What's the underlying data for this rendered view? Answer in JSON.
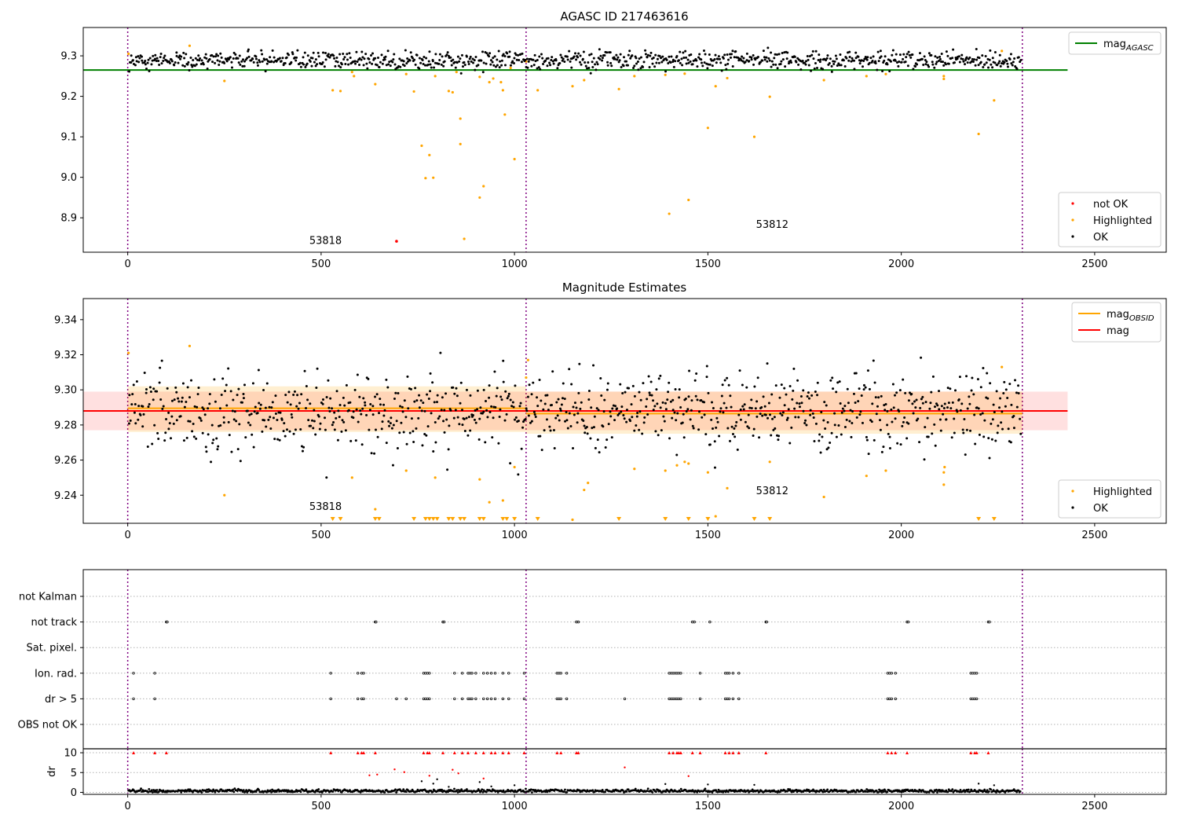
{
  "colors": {
    "ok": "#000000",
    "highlighted": "#ffa500",
    "not_ok": "#ff0000",
    "mag_agasc": "#008000",
    "mag_obsid": "#ffa500",
    "mag": "#ff0000",
    "obs_boundary": "#800080",
    "grid": "#b0b0b0"
  },
  "chart_data": [
    {
      "type": "scatter",
      "title": "AGASC ID 217463616",
      "xlim": [
        -115,
        2685
      ],
      "ylim": [
        8.815,
        9.37
      ],
      "xticks": [
        "0",
        "500",
        "1000",
        "1500",
        "2000",
        "2500"
      ],
      "yticks": [
        "8.9",
        "9.0",
        "9.1",
        "9.2",
        "9.3"
      ],
      "x_range_points": [
        0,
        2310
      ],
      "obs_boundaries": [
        0,
        1030,
        2313
      ],
      "obsid_labels": [
        {
          "text": "53818",
          "x": 510,
          "y": 8.82
        },
        {
          "text": "53812",
          "x": 1665,
          "y": 8.86
        }
      ],
      "mag_agasc_line": {
        "y": 9.265,
        "x": [
          -115,
          2430
        ]
      },
      "ok_band": {
        "mean": 9.288,
        "sigma": 0.0095
      },
      "highlighted": [
        [
          2,
          9.305
        ],
        [
          160,
          9.325
        ],
        [
          250,
          9.238
        ],
        [
          530,
          9.215
        ],
        [
          550,
          9.213
        ],
        [
          580,
          9.26
        ],
        [
          585,
          9.25
        ],
        [
          640,
          9.23
        ],
        [
          720,
          9.255
        ],
        [
          740,
          9.212
        ],
        [
          760,
          9.078
        ],
        [
          770,
          8.998
        ],
        [
          780,
          9.055
        ],
        [
          790,
          8.999
        ],
        [
          795,
          9.25
        ],
        [
          830,
          9.213
        ],
        [
          840,
          9.21
        ],
        [
          850,
          9.26
        ],
        [
          860,
          9.145
        ],
        [
          860,
          9.082
        ],
        [
          870,
          8.848
        ],
        [
          910,
          8.95
        ],
        [
          910,
          9.248
        ],
        [
          920,
          8.978
        ],
        [
          935,
          9.235
        ],
        [
          945,
          9.244
        ],
        [
          965,
          9.235
        ],
        [
          970,
          9.215
        ],
        [
          975,
          9.155
        ],
        [
          990,
          9.27
        ],
        [
          1000,
          9.045
        ],
        [
          1030,
          9.286
        ],
        [
          1060,
          9.215
        ],
        [
          1150,
          9.225
        ],
        [
          1180,
          9.24
        ],
        [
          1270,
          9.218
        ],
        [
          1310,
          9.25
        ],
        [
          1390,
          9.253
        ],
        [
          1400,
          8.91
        ],
        [
          1440,
          9.256
        ],
        [
          1450,
          8.944
        ],
        [
          1500,
          9.122
        ],
        [
          1520,
          9.225
        ],
        [
          1550,
          9.245
        ],
        [
          1620,
          9.1
        ],
        [
          1660,
          9.199
        ],
        [
          1800,
          9.24
        ],
        [
          1910,
          9.25
        ],
        [
          1960,
          9.255
        ],
        [
          2110,
          9.243
        ],
        [
          2110,
          9.25
        ],
        [
          2200,
          9.107
        ],
        [
          2240,
          9.19
        ],
        [
          2260,
          9.312
        ]
      ],
      "not_ok": [
        [
          695,
          8.842
        ]
      ],
      "ok_series": {
        "count": 1000,
        "x_range": [
          2,
          2310
        ],
        "center": 9.289,
        "spread": 0.011
      },
      "legends": [
        {
          "position": "top-right",
          "entries": [
            {
              "label": "mag",
              "sub": "AGASC",
              "kind": "line",
              "color": "#008000"
            }
          ]
        },
        {
          "position": "bottom-right",
          "entries": [
            {
              "label": "not OK",
              "kind": "dot",
              "color": "#ff0000"
            },
            {
              "label": "Highlighted",
              "kind": "dot",
              "color": "#ffa500"
            },
            {
              "label": "OK",
              "kind": "dot",
              "color": "#000000"
            }
          ]
        }
      ]
    },
    {
      "type": "scatter",
      "title": "Magnitude Estimates",
      "xlim": [
        -115,
        2685
      ],
      "ylim": [
        9.224,
        9.352
      ],
      "xticks": [
        "0",
        "500",
        "1000",
        "1500",
        "2000",
        "2500"
      ],
      "yticks": [
        "9.24",
        "9.26",
        "9.28",
        "9.30",
        "9.32",
        "9.34"
      ],
      "obs_boundaries": [
        0,
        1030,
        2313
      ],
      "obsid_labels": [
        {
          "text": "53818",
          "x": 510,
          "y": 9.228
        },
        {
          "text": "53812",
          "x": 1665,
          "y": 9.237
        }
      ],
      "mag_line": {
        "y": 9.288,
        "x": [
          -115,
          2430
        ],
        "band": [
          9.277,
          9.299
        ]
      },
      "mag_obsid_segments": [
        {
          "x": [
            0,
            1030
          ],
          "y": 9.2895,
          "band": [
            9.276,
            9.302
          ]
        },
        {
          "x": [
            1030,
            2313
          ],
          "y": 9.2865,
          "band": [
            9.275,
            9.299
          ]
        }
      ],
      "highlighted": [
        [
          2,
          9.321
        ],
        [
          160,
          9.325
        ],
        [
          250,
          9.24
        ],
        [
          580,
          9.25
        ],
        [
          640,
          9.232
        ],
        [
          720,
          9.254
        ],
        [
          795,
          9.25
        ],
        [
          910,
          9.249
        ],
        [
          935,
          9.236
        ],
        [
          970,
          9.237
        ],
        [
          1000,
          9.256
        ],
        [
          1030,
          9.307
        ],
        [
          1035,
          9.317
        ],
        [
          1150,
          9.226
        ],
        [
          1180,
          9.243
        ],
        [
          1190,
          9.247
        ],
        [
          1310,
          9.255
        ],
        [
          1390,
          9.254
        ],
        [
          1420,
          9.257
        ],
        [
          1440,
          9.259
        ],
        [
          1450,
          9.258
        ],
        [
          1500,
          9.253
        ],
        [
          1520,
          9.228
        ],
        [
          1550,
          9.244
        ],
        [
          1660,
          9.259
        ],
        [
          1800,
          9.239
        ],
        [
          1910,
          9.251
        ],
        [
          1960,
          9.254
        ],
        [
          2110,
          9.253
        ],
        [
          2110,
          9.246
        ],
        [
          2112,
          9.256
        ],
        [
          2260,
          9.313
        ]
      ],
      "clipped_below_x": [
        530,
        550,
        640,
        650,
        740,
        770,
        780,
        790,
        800,
        830,
        840,
        860,
        870,
        910,
        920,
        970,
        980,
        1000,
        1060,
        1270,
        1390,
        1450,
        1500,
        1620,
        1660,
        2200,
        2240
      ],
      "ok_series": {
        "count": 1000,
        "x_range": [
          2,
          2310
        ],
        "center": 9.288,
        "spread": 0.011
      },
      "legends": [
        {
          "position": "top-right",
          "entries": [
            {
              "label": "mag",
              "sub": "OBSID",
              "kind": "line",
              "color": "#ffa500"
            },
            {
              "label": "mag",
              "sub": "",
              "kind": "line",
              "color": "#ff0000"
            }
          ]
        },
        {
          "position": "bottom-right",
          "entries": [
            {
              "label": "Highlighted",
              "kind": "dot",
              "color": "#ffa500"
            },
            {
              "label": "OK",
              "kind": "dot",
              "color": "#000000"
            }
          ]
        }
      ]
    },
    {
      "type": "scatter",
      "title": "",
      "xlim": [
        -115,
        2685
      ],
      "flag_rows": [
        "not Kalman",
        "not track",
        "Sat. pixel.",
        "Ion. rad.",
        "dr > 5",
        "OBS not OK"
      ],
      "obs_boundaries": [
        0,
        1030,
        2313
      ],
      "flags": {
        "not track": [
          100,
          102,
          640,
          642,
          815,
          818,
          1160,
          1165,
          1460,
          1465,
          1505,
          1650,
          1652,
          2015,
          2018,
          2225,
          2228
        ],
        "Ion. rad.": [
          15,
          70,
          525,
          595,
          605,
          610,
          765,
          770,
          775,
          780,
          845,
          865,
          880,
          885,
          890,
          900,
          920,
          930,
          940,
          950,
          970,
          985,
          1025,
          1110,
          1115,
          1120,
          1135,
          1400,
          1405,
          1410,
          1415,
          1420,
          1425,
          1430,
          1480,
          1545,
          1550,
          1555,
          1565,
          1580,
          1965,
          1970,
          1975,
          1985,
          2180,
          2185,
          2190,
          2195
        ],
        "dr > 5": [
          15,
          70,
          525,
          595,
          605,
          610,
          695,
          720,
          765,
          770,
          775,
          780,
          845,
          865,
          880,
          885,
          890,
          900,
          920,
          930,
          940,
          950,
          970,
          985,
          1025,
          1110,
          1115,
          1120,
          1135,
          1285,
          1400,
          1405,
          1410,
          1415,
          1420,
          1425,
          1430,
          1480,
          1545,
          1550,
          1555,
          1565,
          1580,
          1965,
          1970,
          1975,
          1985,
          2180,
          2185,
          2190,
          2195
        ]
      },
      "dr": {
        "ylabel": "dr",
        "ylim": [
          -0.5,
          11
        ],
        "yticks": [
          "0",
          "5",
          "10"
        ],
        "clipped_x": [
          15,
          70,
          100,
          525,
          595,
          605,
          610,
          640,
          765,
          775,
          780,
          815,
          845,
          865,
          880,
          900,
          920,
          940,
          950,
          970,
          985,
          1025,
          1110,
          1120,
          1160,
          1165,
          1400,
          1410,
          1420,
          1425,
          1430,
          1460,
          1480,
          1545,
          1555,
          1565,
          1580,
          1650,
          1965,
          1975,
          1985,
          2015,
          2180,
          2190,
          2195,
          2225
        ],
        "red_points": [
          [
            625,
            4.3
          ],
          [
            645,
            4.5
          ],
          [
            690,
            5.8
          ],
          [
            715,
            5.1
          ],
          [
            780,
            4.2
          ],
          [
            840,
            5.7
          ],
          [
            855,
            4.8
          ],
          [
            920,
            3.5
          ],
          [
            1285,
            6.3
          ],
          [
            1450,
            4.1
          ]
        ],
        "black_outliers": [
          [
            760,
            2.8
          ],
          [
            790,
            2.2
          ],
          [
            800,
            3.3
          ],
          [
            830,
            1.4
          ],
          [
            910,
            2.6
          ],
          [
            940,
            1.5
          ],
          [
            1000,
            1.8
          ],
          [
            1390,
            2.1
          ],
          [
            1500,
            2.0
          ],
          [
            1620,
            1.9
          ],
          [
            2200,
            2.2
          ],
          [
            2240,
            1.8
          ]
        ],
        "baseline_count": 1000
      }
    }
  ]
}
